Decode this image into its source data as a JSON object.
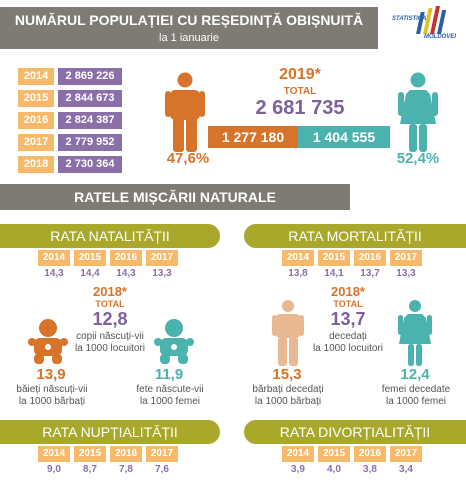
{
  "header": {
    "title": "NUMĂRUL POPULAȚIEI CU REȘEDINȚĂ OBIȘNUITĂ",
    "subtitle": "la 1 ianuarie"
  },
  "logo": {
    "line1": "STATISTICA",
    "line2": "MOLDOVEI"
  },
  "population": {
    "rows": [
      {
        "year": "2014",
        "value": "2 869 226"
      },
      {
        "year": "2015",
        "value": "2 844 673"
      },
      {
        "year": "2016",
        "value": "2 824 387"
      },
      {
        "year": "2017",
        "value": "2 779 952"
      },
      {
        "year": "2018",
        "value": "2 730 364"
      }
    ],
    "current_year": "2019*",
    "total_label": "TOTAL",
    "total_value": "2 681 735",
    "male_value": "1 277 180",
    "female_value": "1 404 555",
    "male_pct": "47,6%",
    "female_pct": "52,4%"
  },
  "section2": {
    "title": "RATELE MIȘCĂRII NATURALE"
  },
  "natality": {
    "title": "RATA NATALITĂȚII",
    "years": [
      "2014",
      "2015",
      "2016",
      "2017"
    ],
    "values": [
      "14,3",
      "14,4",
      "14,3",
      "13,3"
    ],
    "year": "2018*",
    "total_label": "TOTAL",
    "total_value": "12,8",
    "total_desc1": "copii născuți-vii",
    "total_desc2": "la 1000 locuitori",
    "boys_value": "13,9",
    "boys_desc1": "băieți născuți-vii",
    "boys_desc2": "la 1000 bărbați",
    "girls_value": "11,9",
    "girls_desc1": "fete născute-vii",
    "girls_desc2": "la 1000 femei"
  },
  "mortality": {
    "title": "RATA MORTALITĂȚII",
    "years": [
      "2014",
      "2015",
      "2016",
      "2017"
    ],
    "values": [
      "13,8",
      "14,1",
      "13,7",
      "13,3"
    ],
    "year": "2018*",
    "total_label": "TOTAL",
    "total_value": "13,7",
    "total_desc1": "decedați",
    "total_desc2": "la 1000 locuitori",
    "men_value": "15,3",
    "men_desc1": "bărbați decedați",
    "men_desc2": "la 1000 bărbați",
    "women_value": "12,4",
    "women_desc1": "femei decedate",
    "women_desc2": "la 1000 femei"
  },
  "nuptiality": {
    "title": "RATA NUPȚIALITĂȚII",
    "years": [
      "2014",
      "2015",
      "2016",
      "2017"
    ],
    "values": [
      "9,0",
      "8,7",
      "7,8",
      "7,6"
    ]
  },
  "divorce": {
    "title": "RATA DIVORȚIALITĂȚII",
    "years": [
      "2014",
      "2015",
      "2016",
      "2017"
    ],
    "values": [
      "3,9",
      "4,0",
      "3,8",
      "3,4"
    ]
  },
  "colors": {
    "orange": "#d8732a",
    "teal": "#4ab3ad",
    "purple": "#8a6fa8",
    "olive": "#a8a92a",
    "tag": "#f7b96a",
    "banner": "#7e7b74"
  }
}
